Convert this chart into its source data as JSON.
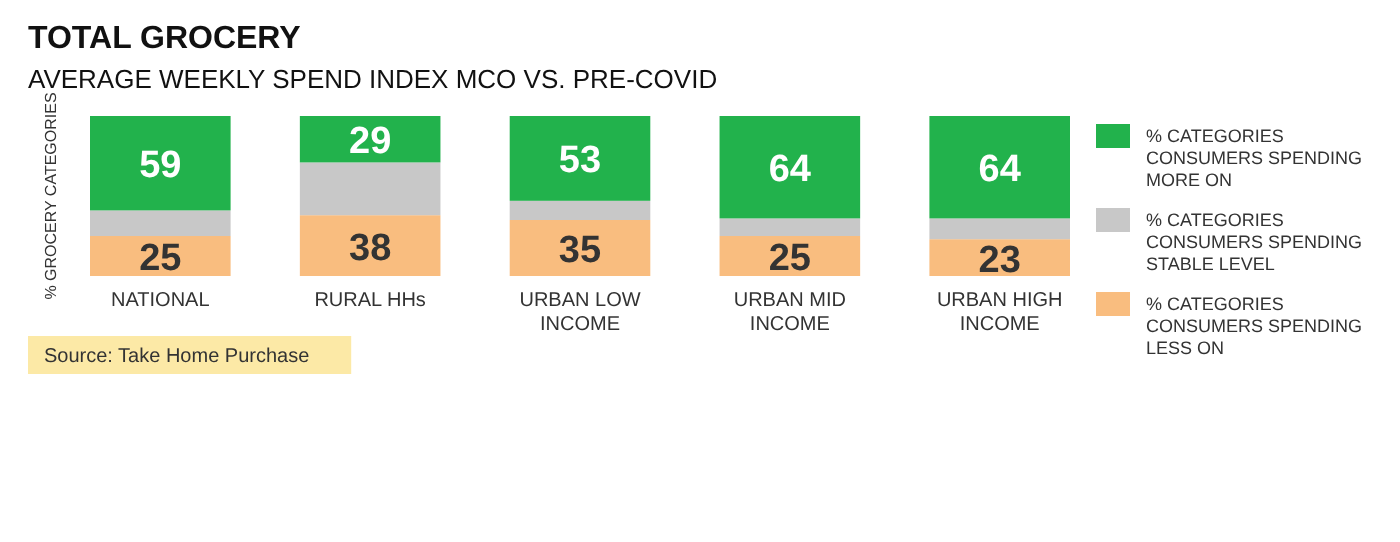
{
  "chart_data": {
    "type": "bar",
    "title": "TOTAL GROCERY",
    "subtitle": "AVERAGE WEEKLY SPEND INDEX MCO VS. PRE-COVID",
    "ylabel": "% GROCERY CATEGORIES",
    "categories": [
      "NATIONAL",
      "RURAL HHs",
      "URBAN LOW INCOME",
      "URBAN MID INCOME",
      "URBAN HIGH INCOME"
    ],
    "stacked": true,
    "ylim": [
      0,
      100
    ],
    "tick_labels": "x",
    "legend": "right",
    "series": [
      {
        "name": "% CATEGORIES CONSUMERS SPENDING LESS ON",
        "color": "#f9bd7f",
        "values": [
          25,
          38,
          35,
          25,
          23
        ],
        "value_labels": [
          "25",
          "38",
          "35",
          "25",
          "23"
        ]
      },
      {
        "name": "% CATEGORIES CONSUMERS SPENDING STABLE LEVEL",
        "color": "#c8c8c8",
        "values": [
          16,
          33,
          12,
          11,
          13
        ],
        "value_labels": [
          null,
          null,
          null,
          null,
          null
        ]
      },
      {
        "name": "% CATEGORIES CONSUMERS SPENDING MORE ON",
        "color": "#22b24c",
        "values": [
          59,
          29,
          53,
          64,
          64
        ],
        "value_labels": [
          "59",
          "29",
          "53",
          "64",
          "64"
        ]
      }
    ],
    "annotations": [
      "Source: Take Home Purchase"
    ]
  }
}
